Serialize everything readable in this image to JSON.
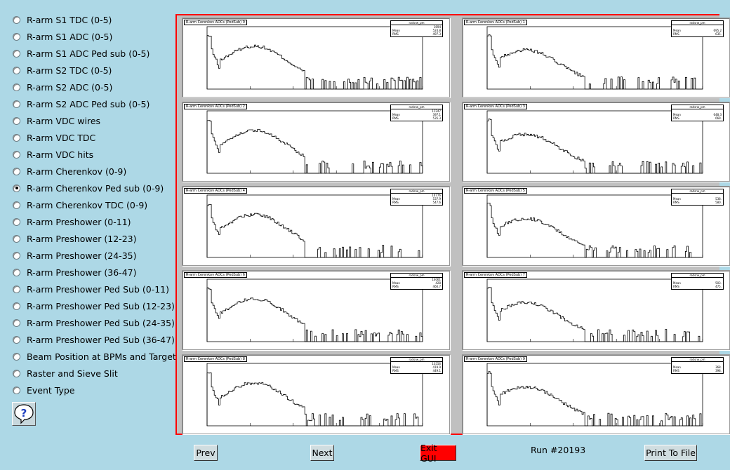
{
  "sidebar": {
    "items": [
      {
        "label": "R-arm S1 TDC (0-5)",
        "selected": false
      },
      {
        "label": "R-arm S1 ADC (0-5)",
        "selected": false
      },
      {
        "label": "R-arm S1 ADC Ped sub (0-5)",
        "selected": false
      },
      {
        "label": "R-arm S2 TDC (0-5)",
        "selected": false
      },
      {
        "label": "R-arm S2 ADC (0-5)",
        "selected": false
      },
      {
        "label": "R-arm S2 ADC Ped sub (0-5)",
        "selected": false
      },
      {
        "label": "R-arm VDC wires",
        "selected": false
      },
      {
        "label": "R-arm VDC TDC",
        "selected": false
      },
      {
        "label": "R-arm VDC hits",
        "selected": false
      },
      {
        "label": "R-arm Cherenkov (0-9)",
        "selected": false
      },
      {
        "label": "R-arm Cherenkov Ped sub (0-9)",
        "selected": true
      },
      {
        "label": "R-arm Cherenkov TDC (0-9)",
        "selected": false
      },
      {
        "label": "R-arm Preshower (0-11)",
        "selected": false
      },
      {
        "label": "R-arm Preshower (12-23)",
        "selected": false
      },
      {
        "label": "R-arm Preshower (24-35)",
        "selected": false
      },
      {
        "label": "R-arm Preshower (36-47)",
        "selected": false
      },
      {
        "label": "R-arm Preshower Ped Sub (0-11)",
        "selected": false
      },
      {
        "label": "R-arm Preshower Ped Sub (12-23)",
        "selected": false
      },
      {
        "label": "R-arm Preshower Ped Sub (24-35)",
        "selected": false
      },
      {
        "label": "R-arm Preshower Ped Sub (36-47)",
        "selected": false
      },
      {
        "label": "Beam Position at BPMs and Target",
        "selected": false
      },
      {
        "label": "Raster and Sieve Slit",
        "selected": false
      },
      {
        "label": "Event Type",
        "selected": false
      }
    ],
    "help_glyph": "?"
  },
  "pads": [
    {
      "title": "R-arm Cerenkov ADCs (PedSub) 0",
      "stats": {
        "name": "radsrw_pm",
        "entries": "1694",
        "mean": "524.8",
        "rms": "497.3"
      }
    },
    {
      "title": "R-arm Cerenkov ADCs (PedSub) 1",
      "stats": {
        "name": "radsrw_pm",
        "entries": "",
        "mean": "695.2",
        "rms": "635."
      }
    },
    {
      "title": "R-arm Cerenkov ADCs (PedSub) 2",
      "stats": {
        "name": "radsrw_pm",
        "entries": "11247",
        "mean": "397.1",
        "rms": "535.3"
      }
    },
    {
      "title": "R-arm Cerenkov ADCs (PedSub) 3",
      "stats": {
        "name": "radsrw_pm",
        "entries": "",
        "mean": "648.3",
        "rms": "669."
      }
    },
    {
      "title": "R-arm Cerenkov ADCs (PedSub) 4",
      "stats": {
        "name": "radsrw_pm",
        "entries": "10776",
        "mean": "537.9",
        "rms": "547.6"
      }
    },
    {
      "title": "R-arm Cerenkov ADCs (PedSub) 5",
      "stats": {
        "name": "radsrw_pm",
        "entries": "",
        "mean": "538.",
        "rms": "580."
      }
    },
    {
      "title": "R-arm Cerenkov ADCs (PedSub) 6",
      "stats": {
        "name": "radsrw_pm",
        "entries": "14061",
        "mean": "428",
        "rms": "460.7"
      }
    },
    {
      "title": "R-arm Cerenkov ADCs (PedSub) 7",
      "stats": {
        "name": "radsrw_pm",
        "entries": "",
        "mean": "503.",
        "rms": "475."
      }
    },
    {
      "title": "R-arm Cerenkov ADCs (PedSub) 8",
      "stats": {
        "name": "radsrw_pm",
        "entries": "13556",
        "mean": "419.9",
        "rms": "449.1"
      }
    },
    {
      "title": "R-arm Cerenkov ADCs (PedSub) 9",
      "stats": {
        "name": "radsrw_pm",
        "entries": "",
        "mean": "368.",
        "rms": "398."
      }
    }
  ],
  "stats_labels": {
    "mean": "Mean",
    "rms": "RMS"
  },
  "footer": {
    "prev_label": "Prev",
    "next_label": "Next",
    "exit_label": "Exit GUI",
    "run_label": "Run #20193",
    "print_label": "Print To File"
  },
  "colors": {
    "background": "#add8e6",
    "exit_button": "#ff0000",
    "canvas_border": "#ff0000"
  }
}
